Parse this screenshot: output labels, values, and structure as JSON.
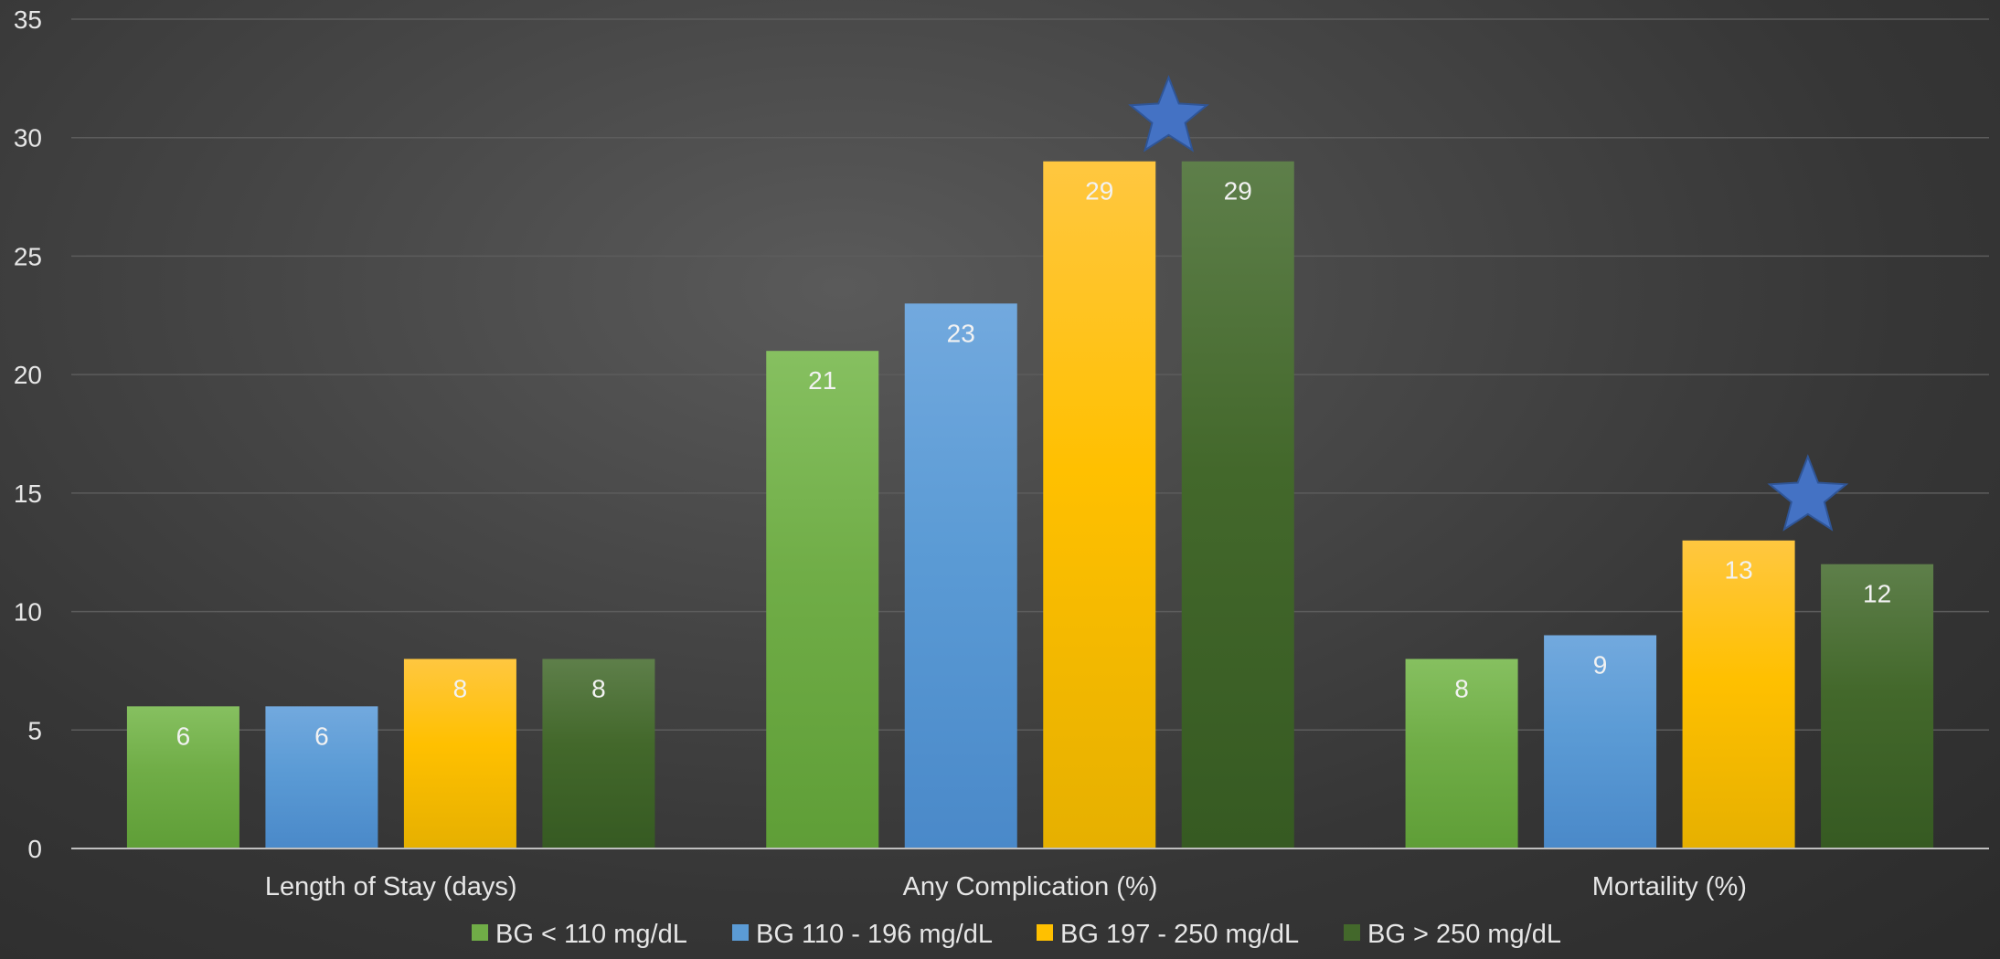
{
  "chart_data": {
    "type": "bar",
    "title": "",
    "xlabel": "",
    "ylabel": "",
    "ylim": [
      0,
      35
    ],
    "yticks": [
      0,
      5,
      10,
      15,
      20,
      25,
      30,
      35
    ],
    "grid": true,
    "legend_position": "bottom",
    "categories": [
      "Length of Stay (days)",
      "Any Complication (%)",
      "Mortaility (%)"
    ],
    "series": [
      {
        "name": "BG < 110 mg/dL",
        "values": [
          6,
          21,
          8
        ],
        "color": "#70ad47",
        "color_light": "#86c060",
        "color_dark": "#5f9e37"
      },
      {
        "name": "BG 110 - 196 mg/dL",
        "values": [
          6,
          23,
          9
        ],
        "color": "#5b9bd5",
        "color_light": "#72a9de",
        "color_dark": "#4a89c9"
      },
      {
        "name": "BG 197 - 250 mg/dL",
        "values": [
          8,
          29,
          13
        ],
        "color": "#ffc000",
        "color_light": "#ffc740",
        "color_dark": "#e6b000"
      },
      {
        "name": "BG > 250 mg/dL",
        "values": [
          8,
          29,
          12
        ],
        "color": "#43682b",
        "color_light": "#5e7f4a",
        "color_dark": "#365a22"
      }
    ],
    "data_labels": true,
    "annotations": [
      {
        "type": "star",
        "category_index": 1,
        "y": 31,
        "color": "#4472c4",
        "meaning": "significance marker"
      },
      {
        "type": "star",
        "category_index": 2,
        "y": 15,
        "color": "#4472c4",
        "meaning": "significance marker"
      }
    ]
  }
}
